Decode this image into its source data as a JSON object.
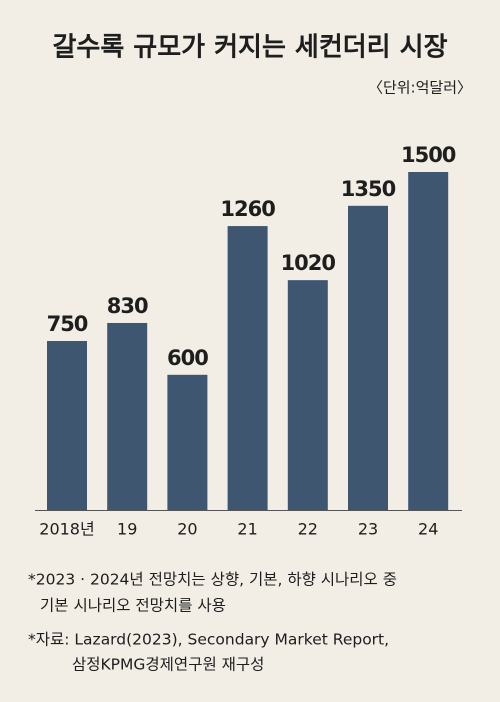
{
  "chart_data": {
    "type": "bar",
    "title": "갈수록 규모가 커지는 세컨더리 시장",
    "unit": "〈단위:억달러〉",
    "categories": [
      "2018년",
      "19",
      "20",
      "21",
      "22",
      "23",
      "24"
    ],
    "values": [
      750,
      830,
      600,
      1260,
      1020,
      1350,
      1500
    ],
    "color": "#3e5670",
    "notes": [
      "*2023 · 2024년 전망치는 상향, 기본, 하향 시나리오 중",
      "기본 시나리오 전망치를 사용",
      "*자료: Lazard(2023), Secondary Market Report,",
      "삼정KPMG경제연구원 재구성"
    ]
  }
}
